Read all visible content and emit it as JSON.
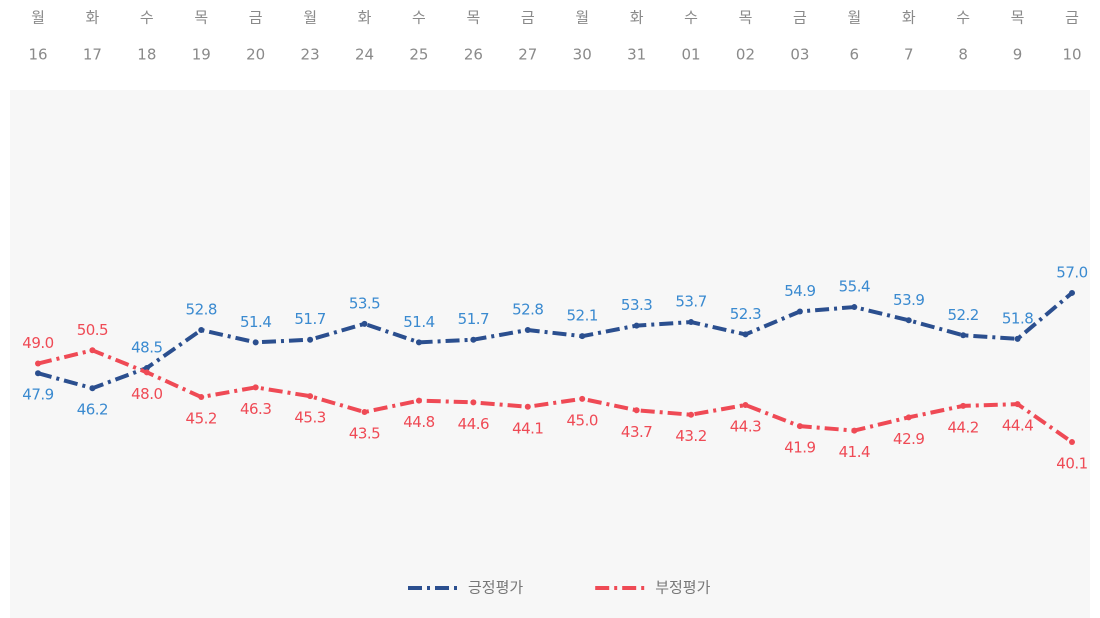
{
  "chart_data": {
    "type": "line",
    "weekdays": [
      "월",
      "화",
      "수",
      "목",
      "금",
      "월",
      "화",
      "수",
      "목",
      "금",
      "월",
      "화",
      "수",
      "목",
      "금",
      "월",
      "화",
      "수",
      "목",
      "금"
    ],
    "categories": [
      "16",
      "17",
      "18",
      "19",
      "20",
      "23",
      "24",
      "25",
      "26",
      "27",
      "30",
      "31",
      "01",
      "02",
      "03",
      "6",
      "7",
      "8",
      "9",
      "10"
    ],
    "ylim": [
      29,
      80
    ],
    "series": [
      {
        "name": "긍정평가",
        "color": "#2b4f8f",
        "label_color": "#3a8ad0",
        "values": [
          47.9,
          46.2,
          48.5,
          52.8,
          51.4,
          51.7,
          53.5,
          51.4,
          51.7,
          52.8,
          52.1,
          53.3,
          53.7,
          52.3,
          54.9,
          55.4,
          53.9,
          52.2,
          51.8,
          57.0
        ],
        "value_labels": [
          "47.9",
          "46.2",
          "48.5",
          "52.8",
          "51.4",
          "51.7",
          "53.5",
          "51.4",
          "51.7",
          "52.8",
          "52.1",
          "53.3",
          "53.7",
          "52.3",
          "54.9",
          "55.4",
          "53.9",
          "52.2",
          "51.8",
          "57.0"
        ]
      },
      {
        "name": "부정평가",
        "color": "#ef4a55",
        "label_color": "#ef4a55",
        "values": [
          49.0,
          50.5,
          48.0,
          45.2,
          46.3,
          45.3,
          43.5,
          44.8,
          44.6,
          44.1,
          45.0,
          43.7,
          43.2,
          44.3,
          41.9,
          41.4,
          42.9,
          44.2,
          44.4,
          40.1
        ],
        "value_labels": [
          "49.0",
          "50.5",
          "48.0",
          "45.2",
          "46.3",
          "45.3",
          "43.5",
          "44.8",
          "44.6",
          "44.1",
          "45.0",
          "43.7",
          "43.2",
          "44.3",
          "41.9",
          "41.4",
          "42.9",
          "44.2",
          "44.4",
          "40.1"
        ]
      }
    ]
  }
}
